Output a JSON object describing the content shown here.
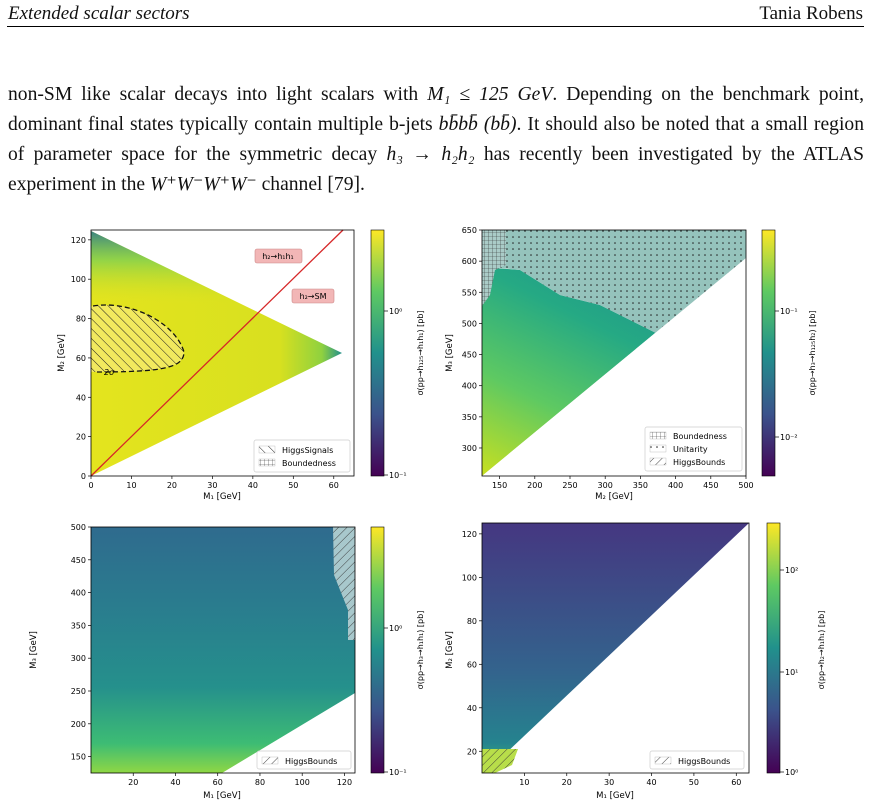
{
  "header": {
    "left": "Extended scalar sectors",
    "right": "Tania Robens"
  },
  "paragraph": {
    "s1": "non-SM like scalar decays into light scalars with ",
    "s1_math": "M₁ ≤ 125 GeV",
    "s2": ". Depending on the benchmark point, dominant final states typically contain multiple b-jets ",
    "s2_math": "bb̄bb̄ (bb̄)",
    "s3": ". It should also be noted that a small region of parameter space for the symmetric decay ",
    "s3_math": "h₃ → h₂h₂",
    "s4": " has recently been investigated by the ATLAS experiment in the ",
    "s4_math": "W⁺W⁻W⁺W⁻",
    "s5": " channel [79]."
  },
  "chart_data": [
    {
      "type": "heatmap",
      "panel": "top-left",
      "xlabel": "M₁ [GeV]",
      "ylabel": "M₂ [GeV]",
      "xlim": [
        0,
        65
      ],
      "ylim": [
        0,
        125
      ],
      "xticks": [
        "0",
        "10",
        "20",
        "30",
        "40",
        "50",
        "60"
      ],
      "yticks": [
        "0",
        "20",
        "40",
        "60",
        "80",
        "100",
        "120"
      ],
      "colorbar_label": "σ(pp→h₁₂₅→h₁h₁) [pb]",
      "colorbar_ticks": [
        "10⁰",
        "10⁻¹"
      ],
      "annotations": [
        "h₂→h₁h₁",
        "h₂→SM",
        "2σ"
      ],
      "legend": [
        "HiggsSignals",
        "Boundedness"
      ],
      "legend_loc": "lower-right"
    },
    {
      "type": "heatmap",
      "panel": "top-right",
      "xlabel": "M₂ [GeV]",
      "ylabel": "M₃ [GeV]",
      "xlim": [
        125,
        500
      ],
      "ylim": [
        255,
        650
      ],
      "xticks": [
        "150",
        "200",
        "250",
        "300",
        "350",
        "400",
        "450",
        "500"
      ],
      "yticks": [
        "300",
        "350",
        "400",
        "450",
        "500",
        "550",
        "600",
        "650"
      ],
      "colorbar_label": "σ(pp→h₃→h₁₂₅h₂) [pb]",
      "colorbar_ticks": [
        "10⁻¹",
        "10⁻²"
      ],
      "legend": [
        "Boundedness",
        "Unitarity",
        "HiggsBounds"
      ],
      "legend_loc": "lower-right"
    },
    {
      "type": "heatmap",
      "panel": "bottom-left",
      "xlabel": "M₁ [GeV]",
      "ylabel": "M₃ [GeV]",
      "xlim": [
        0,
        125
      ],
      "ylim": [
        125,
        500
      ],
      "xticks": [
        "20",
        "40",
        "60",
        "80",
        "100",
        "120"
      ],
      "yticks": [
        "150",
        "200",
        "250",
        "300",
        "350",
        "400",
        "450",
        "500"
      ],
      "colorbar_label": "σ(pp→h₃→h₁h₁) [pb]",
      "colorbar_ticks": [
        "10⁰",
        "10⁻¹"
      ],
      "legend": [
        "HiggsBounds"
      ],
      "legend_loc": "lower-right"
    },
    {
      "type": "heatmap",
      "panel": "bottom-right",
      "xlabel": "M₁ [GeV]",
      "ylabel": "M₂ [GeV]",
      "xlim": [
        0,
        63
      ],
      "ylim": [
        10,
        125
      ],
      "xticks": [
        "10",
        "20",
        "30",
        "40",
        "50",
        "60"
      ],
      "yticks": [
        "20",
        "40",
        "60",
        "80",
        "100",
        "120"
      ],
      "colorbar_label": "σ(pp→h₂→h₁h₁) [pb]",
      "colorbar_ticks": [
        "10²",
        "10¹",
        "10⁰"
      ],
      "legend": [
        "HiggsBounds"
      ],
      "legend_loc": "lower-right"
    }
  ]
}
